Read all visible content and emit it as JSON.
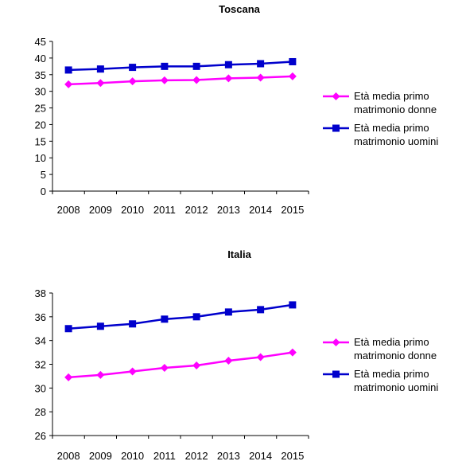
{
  "chart_data": [
    {
      "type": "line",
      "title": "Toscana",
      "x": [
        "2008",
        "2009",
        "2010",
        "2011",
        "2012",
        "2013",
        "2014",
        "2015"
      ],
      "ylim": [
        0,
        45
      ],
      "yticks": [
        0,
        5,
        10,
        15,
        20,
        25,
        30,
        35,
        40,
        45
      ],
      "grid": false,
      "legend_position": "right",
      "series": [
        {
          "name_line1": "Età media primo",
          "name_line2": "matrimonio donne",
          "color": "#ff00ff",
          "marker": "diamond",
          "values": [
            32.1,
            32.5,
            33.0,
            33.3,
            33.4,
            33.9,
            34.1,
            34.5
          ]
        },
        {
          "name_line1": "Età media primo",
          "name_line2": "matrimonio uomini",
          "color": "#0000cc",
          "marker": "square",
          "values": [
            36.4,
            36.7,
            37.2,
            37.5,
            37.5,
            38.0,
            38.3,
            38.9
          ]
        }
      ]
    },
    {
      "type": "line",
      "title": "Italia",
      "x": [
        "2008",
        "2009",
        "2010",
        "2011",
        "2012",
        "2013",
        "2014",
        "2015"
      ],
      "ylim": [
        26,
        38
      ],
      "yticks": [
        26,
        28,
        30,
        32,
        34,
        36,
        38
      ],
      "grid": false,
      "legend_position": "right",
      "series": [
        {
          "name_line1": "Età media primo",
          "name_line2": "matrimonio donne",
          "color": "#ff00ff",
          "marker": "diamond",
          "values": [
            30.9,
            31.1,
            31.4,
            31.7,
            31.9,
            32.3,
            32.6,
            33.0
          ]
        },
        {
          "name_line1": "Età media primo",
          "name_line2": "matrimonio uomini",
          "color": "#0000cc",
          "marker": "square",
          "values": [
            35.0,
            35.2,
            35.4,
            35.8,
            36.0,
            36.4,
            36.6,
            37.0
          ]
        }
      ]
    }
  ]
}
